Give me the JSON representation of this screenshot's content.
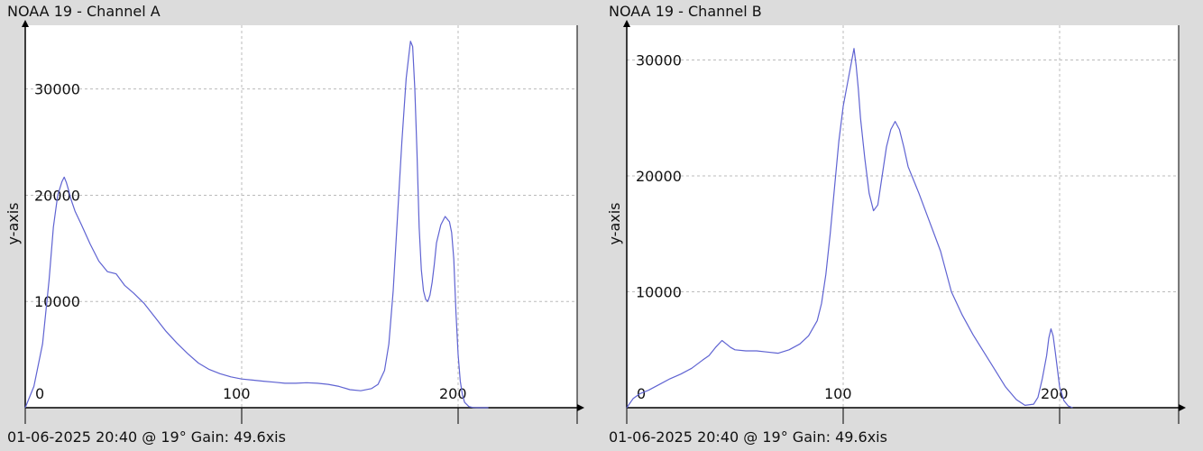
{
  "colors": {
    "background": "#dcdcdc",
    "plot_bg": "#ffffff",
    "line": "#5f63d2",
    "grid": "#bbbbbb",
    "axis": "#000000"
  },
  "charts": [
    {
      "title": "NOAA 19 - Channel A",
      "footer": "01-06-2025 20:40 @ 19° Gain: 49.6xis"
    },
    {
      "title": "NOAA 19 - Channel B",
      "footer": "01-06-2025 20:40 @ 19° Gain: 49.6xis"
    }
  ],
  "chart_data": [
    {
      "type": "line",
      "title": "NOAA 19 - Channel A",
      "ylabel": "y-axis",
      "xlim": [
        0,
        255
      ],
      "ylim": [
        0,
        36000
      ],
      "xticks": [
        0,
        100,
        200
      ],
      "yticks": [
        10000,
        20000,
        30000
      ],
      "grid": true,
      "series": [
        {
          "x": [
            0,
            4,
            8,
            11,
            13,
            15,
            17,
            18,
            19,
            20,
            21,
            23,
            26,
            30,
            34,
            38,
            42,
            46,
            50,
            55,
            60,
            65,
            70,
            75,
            80,
            85,
            90,
            95,
            100,
            105,
            110,
            115,
            120,
            125,
            130,
            135,
            140,
            145,
            150,
            155,
            160,
            163,
            166,
            168,
            170,
            172,
            174,
            176,
            178,
            179,
            180,
            181,
            182,
            183,
            184,
            185,
            186,
            187,
            188,
            189,
            190,
            192,
            194,
            196,
            197,
            198,
            199,
            200,
            201,
            202,
            203,
            205,
            207,
            210,
            212,
            214
          ],
          "y": [
            0,
            2000,
            6000,
            12000,
            17000,
            20000,
            21300,
            21700,
            21200,
            20500,
            19700,
            18500,
            17200,
            15400,
            13800,
            12800,
            12600,
            11500,
            10800,
            9800,
            8500,
            7200,
            6100,
            5100,
            4200,
            3600,
            3200,
            2900,
            2700,
            2600,
            2500,
            2400,
            2300,
            2300,
            2350,
            2300,
            2200,
            2000,
            1700,
            1600,
            1800,
            2200,
            3500,
            6000,
            11000,
            18000,
            25000,
            31000,
            34500,
            34000,
            30000,
            24000,
            17000,
            13000,
            11000,
            10200,
            10000,
            10600,
            11800,
            13500,
            15500,
            17200,
            18000,
            17500,
            16500,
            14000,
            9000,
            5000,
            2500,
            1200,
            500,
            100,
            20,
            0,
            0,
            0
          ]
        }
      ]
    },
    {
      "type": "line",
      "title": "NOAA 19 - Channel B",
      "ylabel": "y-axis",
      "xlim": [
        0,
        255
      ],
      "ylim": [
        0,
        33000
      ],
      "xticks": [
        0,
        100,
        200
      ],
      "yticks": [
        10000,
        20000,
        30000
      ],
      "grid": true,
      "series": [
        {
          "x": [
            0,
            3,
            6,
            10,
            15,
            20,
            25,
            30,
            35,
            38,
            41,
            44,
            46,
            48,
            50,
            55,
            60,
            65,
            70,
            75,
            80,
            84,
            88,
            90,
            92,
            94,
            96,
            98,
            100,
            102,
            104,
            105,
            106,
            107,
            108,
            110,
            112,
            114,
            116,
            118,
            120,
            122,
            124,
            126,
            128,
            130,
            135,
            140,
            145,
            150,
            155,
            160,
            165,
            170,
            175,
            180,
            184,
            188,
            190,
            192,
            194,
            195,
            196,
            197,
            198,
            199,
            200,
            202,
            204,
            206
          ],
          "y": [
            0,
            800,
            1200,
            1500,
            2000,
            2500,
            2900,
            3400,
            4100,
            4500,
            5200,
            5800,
            5500,
            5200,
            5000,
            4900,
            4900,
            4800,
            4700,
            5000,
            5500,
            6200,
            7500,
            9000,
            11500,
            15000,
            19000,
            23000,
            26000,
            28000,
            30000,
            31000,
            29500,
            27500,
            25000,
            21500,
            18500,
            17000,
            17500,
            20000,
            22500,
            24000,
            24700,
            24000,
            22500,
            20800,
            18500,
            16000,
            13500,
            10000,
            8000,
            6300,
            4800,
            3300,
            1800,
            700,
            200,
            300,
            900,
            2500,
            4500,
            6000,
            6800,
            6200,
            4800,
            3300,
            1800,
            600,
            150,
            0
          ]
        }
      ]
    }
  ]
}
